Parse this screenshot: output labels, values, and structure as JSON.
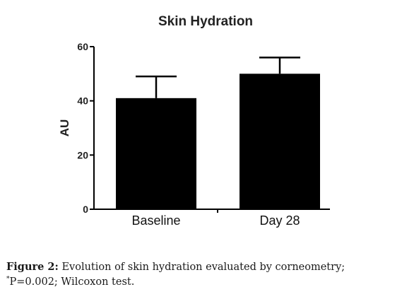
{
  "chart_data": {
    "type": "bar",
    "title": "Skin Hydration",
    "xlabel": "",
    "ylabel": "AU",
    "categories": [
      "Baseline",
      "Day 28"
    ],
    "values": [
      41,
      50
    ],
    "error_upper": [
      49,
      56
    ],
    "ylim": [
      0,
      60
    ],
    "yticks": [
      0,
      20,
      40,
      60
    ],
    "bar_color": "#000000",
    "grid": false,
    "legend": "none"
  },
  "caption": {
    "label": "Figure 2:",
    "text_before_marker": " Evolution of skin hydration evaluated by corneometry; ",
    "marker": "*",
    "text_after_marker": "P=0.002; Wilcoxon test."
  }
}
